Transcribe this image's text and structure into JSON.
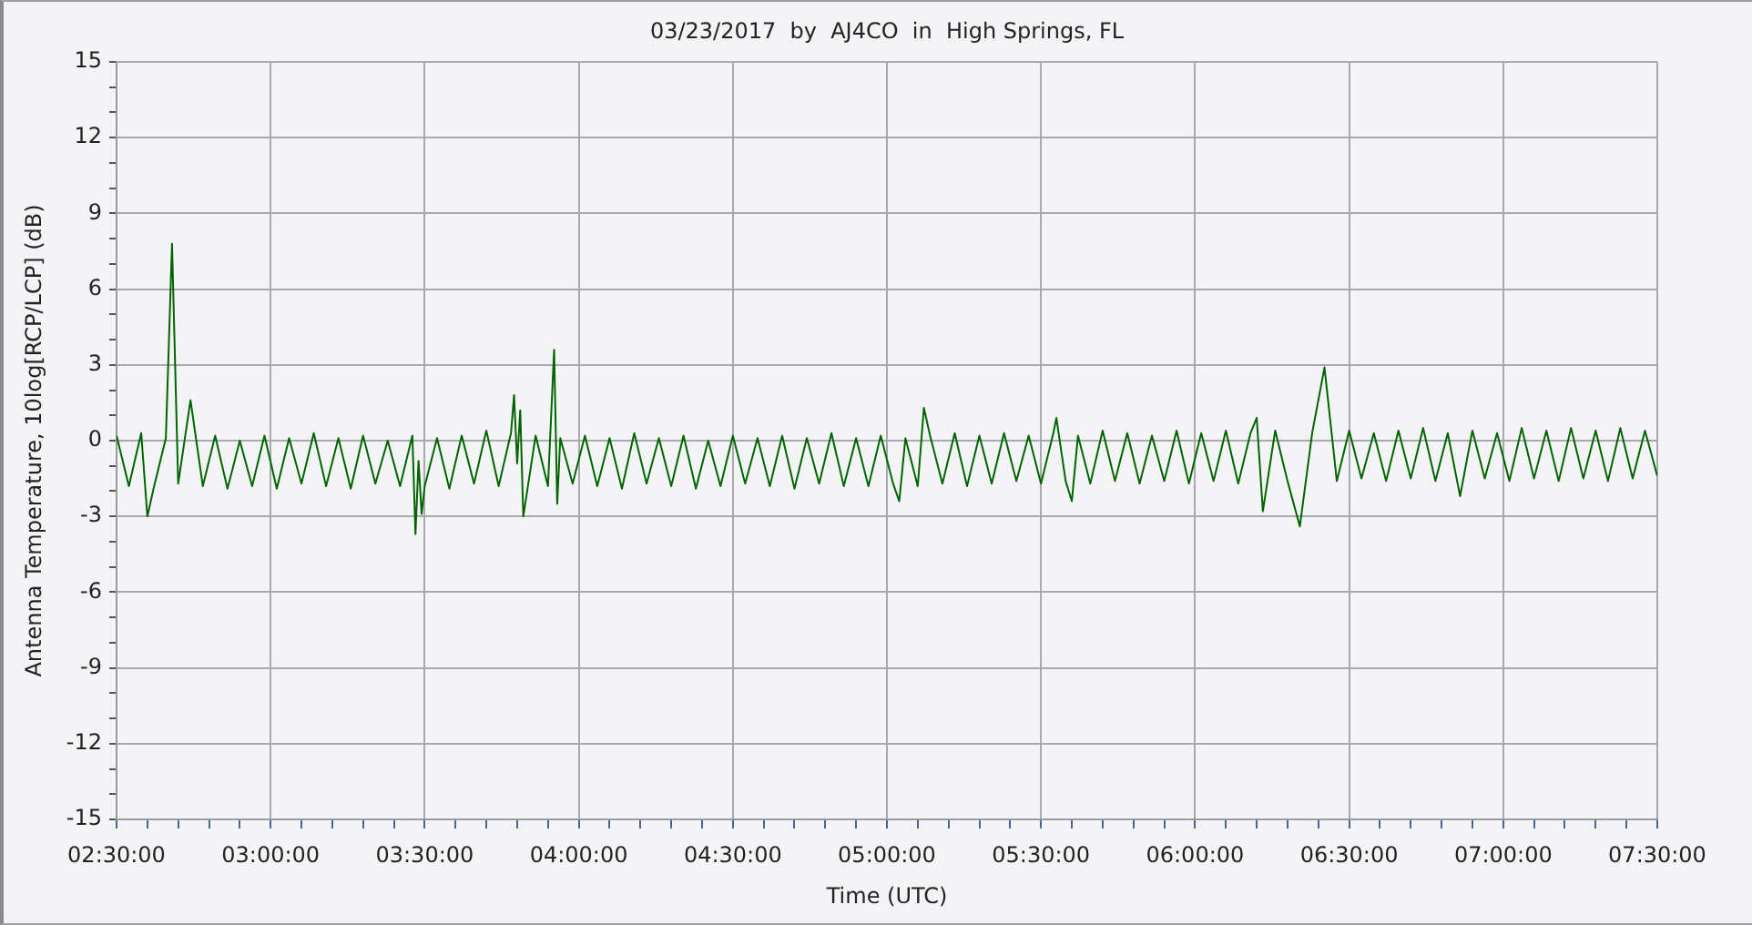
{
  "chart_data": {
    "type": "line",
    "title": "03/23/2017  by  AJ4CO  in  High Springs, FL",
    "xlabel": "Time (UTC)",
    "ylabel": "Antenna Temperature, 10log[RCP/LCP] (dB)",
    "xlim": [
      2.5,
      7.5
    ],
    "ylim": [
      -15,
      15
    ],
    "xticks": [
      {
        "value": 2.5,
        "label": "02:30:00"
      },
      {
        "value": 2.6,
        "label": null
      },
      {
        "value": 2.7,
        "label": null
      },
      {
        "value": 2.8,
        "label": null
      },
      {
        "value": 2.9,
        "label": null
      },
      {
        "value": 3.0,
        "label": "03:00:00"
      },
      {
        "value": 3.1,
        "label": null
      },
      {
        "value": 3.2,
        "label": null
      },
      {
        "value": 3.3,
        "label": null
      },
      {
        "value": 3.4,
        "label": null
      },
      {
        "value": 3.5,
        "label": "03:30:00"
      },
      {
        "value": 3.6,
        "label": null
      },
      {
        "value": 3.7,
        "label": null
      },
      {
        "value": 3.8,
        "label": null
      },
      {
        "value": 3.9,
        "label": null
      },
      {
        "value": 4.0,
        "label": "04:00:00"
      },
      {
        "value": 4.1,
        "label": null
      },
      {
        "value": 4.2,
        "label": null
      },
      {
        "value": 4.3,
        "label": null
      },
      {
        "value": 4.4,
        "label": null
      },
      {
        "value": 4.5,
        "label": "04:30:00"
      },
      {
        "value": 4.6,
        "label": null
      },
      {
        "value": 4.7,
        "label": null
      },
      {
        "value": 4.8,
        "label": null
      },
      {
        "value": 4.9,
        "label": null
      },
      {
        "value": 5.0,
        "label": "05:00:00"
      },
      {
        "value": 5.1,
        "label": null
      },
      {
        "value": 5.2,
        "label": null
      },
      {
        "value": 5.3,
        "label": null
      },
      {
        "value": 5.4,
        "label": null
      },
      {
        "value": 5.5,
        "label": "05:30:00"
      },
      {
        "value": 5.6,
        "label": null
      },
      {
        "value": 5.7,
        "label": null
      },
      {
        "value": 5.8,
        "label": null
      },
      {
        "value": 5.9,
        "label": null
      },
      {
        "value": 6.0,
        "label": "06:00:00"
      },
      {
        "value": 6.1,
        "label": null
      },
      {
        "value": 6.2,
        "label": null
      },
      {
        "value": 6.3,
        "label": null
      },
      {
        "value": 6.4,
        "label": null
      },
      {
        "value": 6.5,
        "label": "06:30:00"
      },
      {
        "value": 6.6,
        "label": null
      },
      {
        "value": 6.7,
        "label": null
      },
      {
        "value": 6.8,
        "label": null
      },
      {
        "value": 6.9,
        "label": null
      },
      {
        "value": 7.0,
        "label": "07:00:00"
      },
      {
        "value": 7.1,
        "label": null
      },
      {
        "value": 7.2,
        "label": null
      },
      {
        "value": 7.3,
        "label": null
      },
      {
        "value": 7.4,
        "label": null
      },
      {
        "value": 7.5,
        "label": "07:30:00"
      }
    ],
    "yticks": [
      -15,
      {
        "value": -14,
        "label": null
      },
      {
        "value": -13,
        "label": null
      },
      -12,
      {
        "value": -11,
        "label": null
      },
      {
        "value": -10,
        "label": null
      },
      -9,
      {
        "value": -8,
        "label": null
      },
      {
        "value": -7,
        "label": null
      },
      -6,
      {
        "value": -5,
        "label": null
      },
      {
        "value": -4,
        "label": null
      },
      -3,
      {
        "value": -2,
        "label": null
      },
      {
        "value": -1,
        "label": null
      },
      0,
      {
        "value": 1,
        "label": null
      },
      {
        "value": 2,
        "label": null
      },
      3,
      {
        "value": 4,
        "label": null
      },
      {
        "value": 5,
        "label": null
      },
      6,
      {
        "value": 7,
        "label": null
      },
      {
        "value": 8,
        "label": null
      },
      9,
      {
        "value": 10,
        "label": null
      },
      {
        "value": 11,
        "label": null
      },
      12,
      {
        "value": 13,
        "label": null
      },
      {
        "value": 14,
        "label": null
      },
      15
    ],
    "grid": true,
    "x": [
      2.5,
      2.54,
      2.58,
      2.6,
      2.62,
      2.66,
      2.68,
      2.7,
      2.74,
      2.78,
      2.82,
      2.86,
      2.9,
      2.94,
      2.98,
      3.02,
      3.06,
      3.1,
      3.14,
      3.18,
      3.22,
      3.26,
      3.3,
      3.34,
      3.38,
      3.42,
      3.46,
      3.47,
      3.48,
      3.49,
      3.5,
      3.54,
      3.58,
      3.62,
      3.66,
      3.7,
      3.74,
      3.78,
      3.79,
      3.8,
      3.81,
      3.82,
      3.86,
      3.9,
      3.92,
      3.93,
      3.94,
      3.98,
      4.02,
      4.06,
      4.1,
      4.14,
      4.18,
      4.22,
      4.26,
      4.3,
      4.34,
      4.38,
      4.42,
      4.46,
      4.5,
      4.54,
      4.58,
      4.62,
      4.66,
      4.7,
      4.74,
      4.78,
      4.82,
      4.86,
      4.9,
      4.94,
      4.98,
      5.02,
      5.04,
      5.06,
      5.1,
      5.12,
      5.14,
      5.18,
      5.22,
      5.26,
      5.3,
      5.34,
      5.38,
      5.42,
      5.46,
      5.5,
      5.54,
      5.55,
      5.58,
      5.6,
      5.62,
      5.66,
      5.7,
      5.74,
      5.78,
      5.82,
      5.86,
      5.9,
      5.94,
      5.98,
      6.02,
      6.06,
      6.1,
      6.14,
      6.18,
      6.2,
      6.22,
      6.26,
      6.3,
      6.34,
      6.38,
      6.42,
      6.46,
      6.5,
      6.54,
      6.58,
      6.62,
      6.66,
      6.7,
      6.74,
      6.78,
      6.82,
      6.86,
      6.9,
      6.94,
      6.98,
      7.02,
      7.06,
      7.1,
      7.14,
      7.18,
      7.22,
      7.26,
      7.3,
      7.34,
      7.38,
      7.42,
      7.46,
      7.5
    ],
    "series": [
      {
        "color": "#006400",
        "values": [
          0.2,
          -1.8,
          0.3,
          -3.0,
          -1.9,
          0.1,
          7.8,
          -1.7,
          1.6,
          -1.8,
          0.2,
          -1.9,
          0.0,
          -1.8,
          0.2,
          -1.9,
          0.1,
          -1.7,
          0.3,
          -1.8,
          0.1,
          -1.9,
          0.2,
          -1.7,
          0.0,
          -1.8,
          0.2,
          -3.7,
          -0.8,
          -2.9,
          -1.8,
          0.1,
          -1.9,
          0.2,
          -1.7,
          0.4,
          -1.8,
          0.3,
          1.8,
          -0.9,
          1.2,
          -3.0,
          0.2,
          -1.8,
          3.6,
          -2.5,
          0.1,
          -1.7,
          0.2,
          -1.8,
          0.1,
          -1.9,
          0.3,
          -1.7,
          0.1,
          -1.8,
          0.2,
          -1.9,
          0.0,
          -1.8,
          0.2,
          -1.7,
          0.1,
          -1.8,
          0.2,
          -1.9,
          0.1,
          -1.7,
          0.3,
          -1.8,
          0.1,
          -1.8,
          0.2,
          -1.7,
          -2.4,
          0.1,
          -1.8,
          1.3,
          0.2,
          -1.7,
          0.3,
          -1.8,
          0.2,
          -1.7,
          0.3,
          -1.6,
          0.2,
          -1.7,
          0.3,
          0.9,
          -1.6,
          -2.4,
          0.2,
          -1.7,
          0.4,
          -1.6,
          0.3,
          -1.7,
          0.2,
          -1.6,
          0.4,
          -1.7,
          0.3,
          -1.6,
          0.4,
          -1.7,
          0.3,
          0.9,
          -2.8,
          0.4,
          -1.6,
          -3.4,
          0.3,
          2.9,
          -1.6,
          0.4,
          -1.5,
          0.3,
          -1.6,
          0.4,
          -1.5,
          0.5,
          -1.6,
          0.3,
          -2.2,
          0.4,
          -1.5,
          0.3,
          -1.6,
          0.5,
          -1.5,
          0.4,
          -1.6,
          0.5,
          -1.5,
          0.4,
          -1.6,
          0.5,
          -1.5,
          0.4,
          -1.4
        ]
      }
    ]
  }
}
